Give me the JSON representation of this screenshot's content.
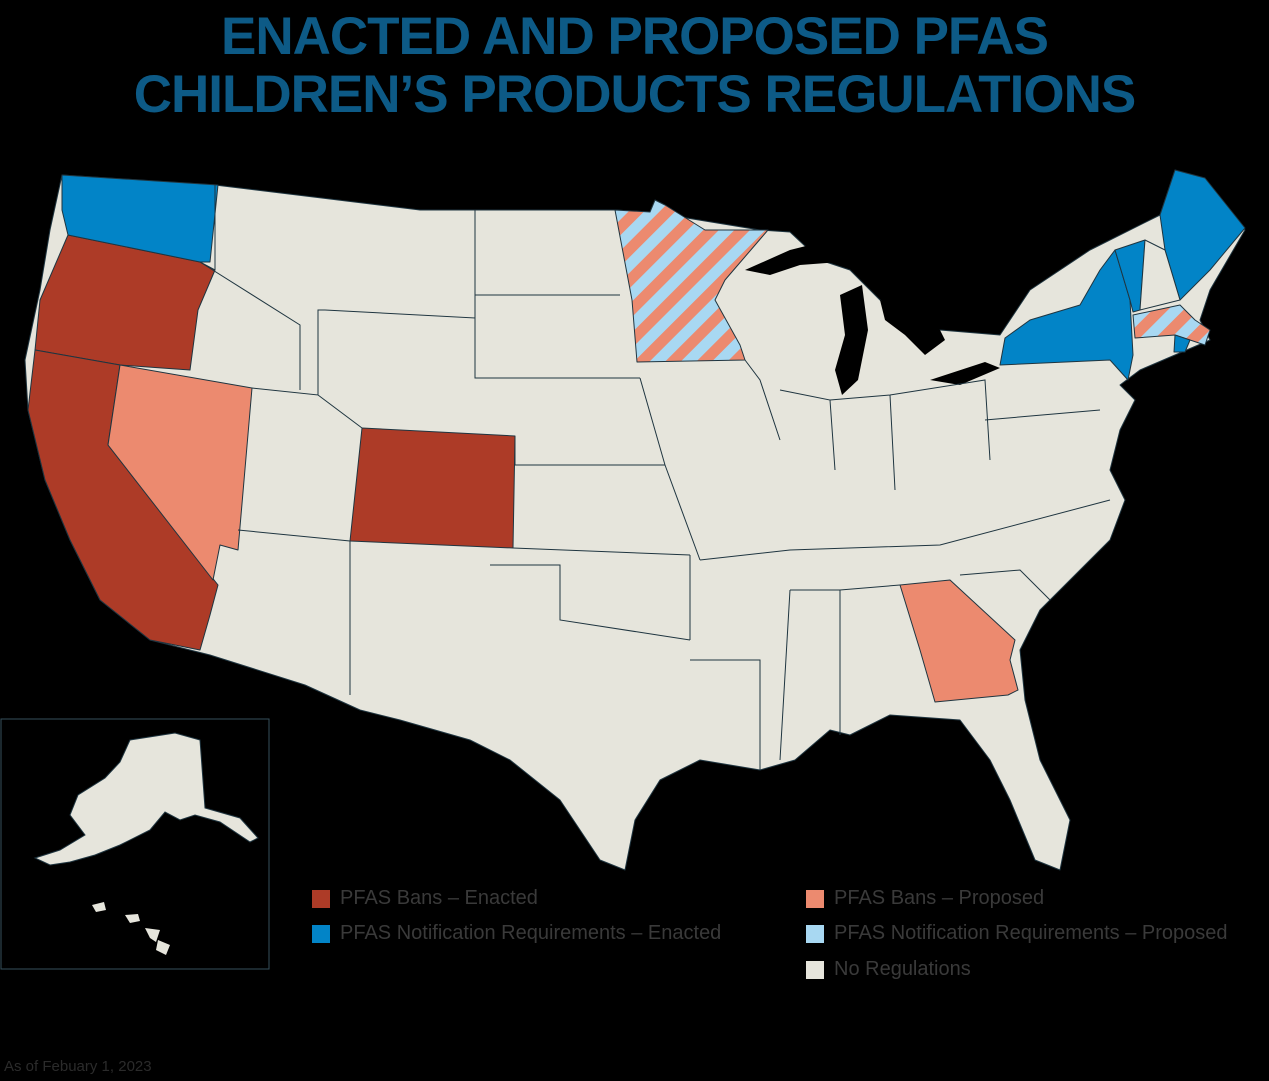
{
  "title": {
    "line1": "ENACTED AND PROPOSED PFAS",
    "line2": "CHILDREN’S PRODUCTS REGULATIONS"
  },
  "as_of": "As of Febuary 1, 2023",
  "colors": {
    "background": "#000000",
    "title": "#0d5a86",
    "bans_enacted": "#ad3b27",
    "bans_proposed": "#ec8a6f",
    "notification_enacted": "#0284c7",
    "notification_proposed": "#a8d8f2",
    "no_regulations": "#e6e5dc",
    "state_border": "#1f3540"
  },
  "legend": [
    {
      "label": "PFAS Bans – Enacted",
      "category": "bans_enacted"
    },
    {
      "label": "PFAS Bans – Proposed",
      "category": "bans_proposed"
    },
    {
      "label": "PFAS Notification Requirements – Enacted",
      "category": "notification_enacted"
    },
    {
      "label": "PFAS Notification Requirements – Proposed",
      "category": "notification_proposed"
    },
    {
      "label": "No Regulations",
      "category": "no_regulations"
    }
  ],
  "states": {
    "bans_enacted": [
      "Oregon",
      "California",
      "Colorado"
    ],
    "bans_proposed": [
      "Nevada",
      "Georgia"
    ],
    "notification_enacted": [
      "Washington",
      "New York",
      "Vermont",
      "Maine"
    ],
    "bans_and_notification_proposed": [
      "Minnesota",
      "Massachusetts"
    ],
    "notification_enacted_bans_proposed": [
      "Rhode Island"
    ]
  }
}
